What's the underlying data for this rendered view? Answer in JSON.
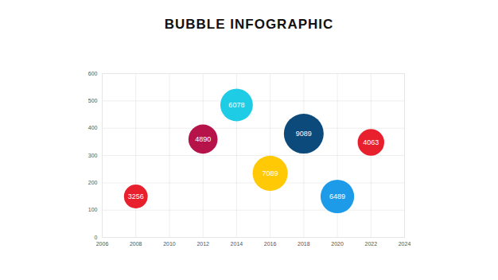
{
  "chart_data": {
    "type": "bubble",
    "title": "BUBBLE INFOGRAPHIC",
    "x": [
      2008,
      2012,
      2014,
      2016,
      2018,
      2020,
      2022
    ],
    "values": [
      150,
      360,
      485,
      235,
      380,
      150,
      348
    ],
    "sizes": [
      3256,
      4890,
      6078,
      7089,
      9089,
      6489,
      4063
    ],
    "colors": [
      "#e8202e",
      "#b5134a",
      "#1ecce6",
      "#ffc905",
      "#0b4a7a",
      "#1e9be8",
      "#e8202e"
    ],
    "xlim": [
      2006,
      2024
    ],
    "xticks": [
      2006,
      2008,
      2010,
      2012,
      2014,
      2016,
      2018,
      2020,
      2022,
      2024
    ],
    "ylim": [
      0,
      600
    ],
    "yticks": [
      0,
      100,
      200,
      300,
      400,
      500,
      600
    ],
    "grid": true,
    "data_labels": true
  }
}
